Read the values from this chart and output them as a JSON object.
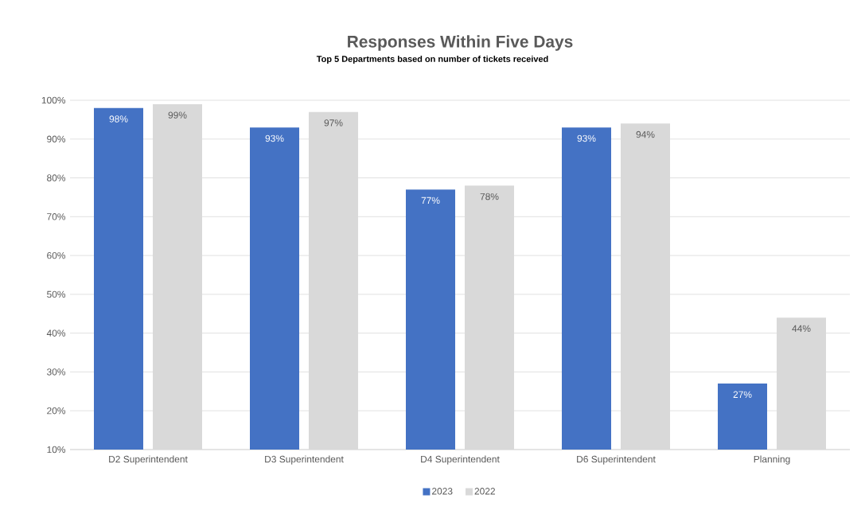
{
  "chart_data": {
    "type": "bar",
    "title": "Responses Within Five Days",
    "subtitle": "Top 5 Departments based on number of tickets received",
    "categories": [
      "D2 Superintendent",
      "D3 Superintendent",
      "D4 Superintendent",
      "D6 Superintendent",
      "Planning"
    ],
    "series": [
      {
        "name": "2023",
        "color": "#4472c4",
        "values": [
          98,
          93,
          77,
          93,
          27
        ],
        "value_labels": [
          "98%",
          "93%",
          "77%",
          "93%",
          "27%"
        ]
      },
      {
        "name": "2022",
        "color": "#d9d9d9",
        "values": [
          99,
          97,
          78,
          94,
          44
        ],
        "value_labels": [
          "99%",
          "97%",
          "78%",
          "94%",
          "44%"
        ]
      }
    ],
    "ylim": [
      10,
      100
    ],
    "yticks": [
      {
        "value": 10,
        "label": "10%"
      },
      {
        "value": 20,
        "label": "20%"
      },
      {
        "value": 30,
        "label": "30%"
      },
      {
        "value": 40,
        "label": "40%"
      },
      {
        "value": 50,
        "label": "50%"
      },
      {
        "value": 60,
        "label": "60%"
      },
      {
        "value": 70,
        "label": "70%"
      },
      {
        "value": 80,
        "label": "80%"
      },
      {
        "value": 90,
        "label": "90%"
      },
      {
        "value": 100,
        "label": "100%"
      }
    ],
    "grid": "y",
    "legend": "bottom"
  }
}
